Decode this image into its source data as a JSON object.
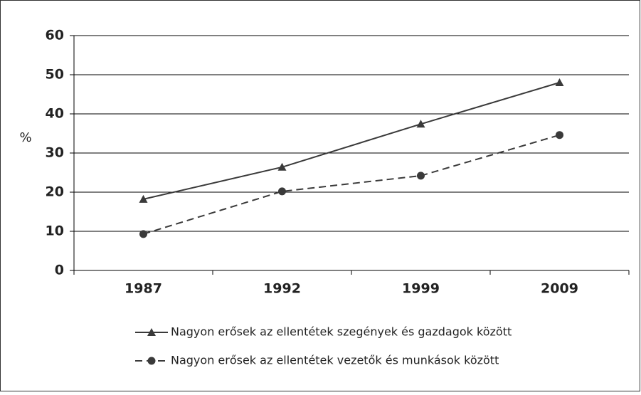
{
  "chart_data": {
    "type": "line",
    "ylabel": "%",
    "categories": [
      "1987",
      "1992",
      "1999",
      "2009"
    ],
    "series": [
      {
        "name": "Nagyon erősek az ellentétek szegények és gazdagok között",
        "color": "#3a3a3a",
        "marker": "triangle",
        "dash": "solid",
        "values": [
          18.2,
          26.4,
          37.4,
          48
        ]
      },
      {
        "name": "Nagyon erősek az ellentétek vezetők és munkások között",
        "color": "#3a3a3a",
        "marker": "circle",
        "dash": "dashed",
        "values": [
          9.3,
          20.2,
          24.2,
          34.6
        ]
      }
    ],
    "ylim": [
      0,
      60
    ],
    "yticks": [
      0,
      10,
      20,
      30,
      40,
      50,
      60
    ],
    "grid": true
  }
}
